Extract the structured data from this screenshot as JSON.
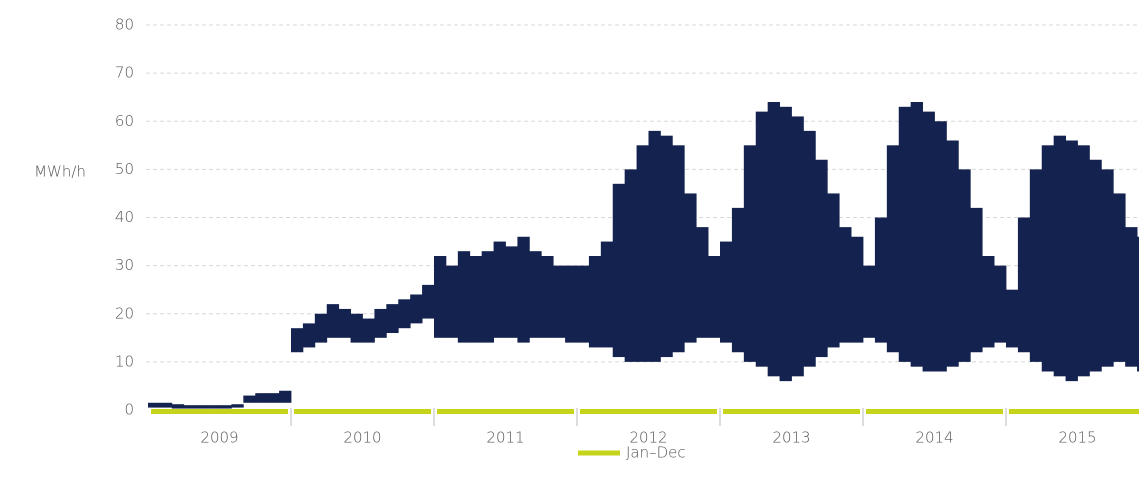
{
  "chart_data": {
    "type": "range-column",
    "y_label": "MWh/h",
    "ylim": [
      0,
      80
    ],
    "yticks": [
      0,
      10,
      20,
      30,
      40,
      50,
      60,
      70,
      80
    ],
    "grid": true,
    "color": "#14224f",
    "period_color": "#c5d31a",
    "legend": "Jan–Dec",
    "periods": [
      {
        "label": 2009,
        "high": [
          1.5,
          1.5,
          1.2,
          1,
          1,
          1,
          1,
          1.2,
          3,
          3.5,
          3.5,
          4
        ],
        "low": [
          0.5,
          0.5,
          0.3,
          0.3,
          0.3,
          0.3,
          0.3,
          0.5,
          1.5,
          1.5,
          1.5,
          1.5
        ]
      },
      {
        "label": 2010,
        "high": [
          17,
          18,
          20,
          22,
          21,
          20,
          19,
          21,
          22,
          23,
          24,
          26
        ],
        "low": [
          12,
          13,
          14,
          15,
          15,
          14,
          14,
          15,
          16,
          17,
          18,
          19
        ]
      },
      {
        "label": 2011,
        "high": [
          32,
          30,
          33,
          32,
          33,
          35,
          34,
          36,
          33,
          32,
          30,
          30
        ],
        "low": [
          15,
          15,
          14,
          14,
          14,
          15,
          15,
          14,
          15,
          15,
          15,
          14
        ]
      },
      {
        "label": 2012,
        "high": [
          30,
          32,
          35,
          47,
          50,
          55,
          58,
          57,
          55,
          45,
          38,
          32
        ],
        "low": [
          14,
          13,
          13,
          11,
          10,
          10,
          10,
          11,
          12,
          14,
          15,
          15
        ]
      },
      {
        "label": 2013,
        "high": [
          35,
          42,
          55,
          62,
          64,
          63,
          61,
          58,
          52,
          45,
          38,
          36
        ],
        "low": [
          14,
          12,
          10,
          9,
          7,
          6,
          7,
          9,
          11,
          13,
          14,
          14
        ]
      },
      {
        "label": 2014,
        "high": [
          30,
          40,
          55,
          63,
          64,
          62,
          60,
          56,
          50,
          42,
          32,
          30
        ],
        "low": [
          15,
          14,
          12,
          10,
          9,
          8,
          8,
          9,
          10,
          12,
          13,
          14
        ]
      },
      {
        "label": 2015,
        "high": [
          25,
          40,
          50,
          55,
          57,
          56,
          55,
          52,
          50,
          45,
          38,
          36
        ],
        "low": [
          13,
          12,
          10,
          8,
          7,
          6,
          7,
          8,
          9,
          10,
          9,
          8
        ]
      }
    ]
  }
}
